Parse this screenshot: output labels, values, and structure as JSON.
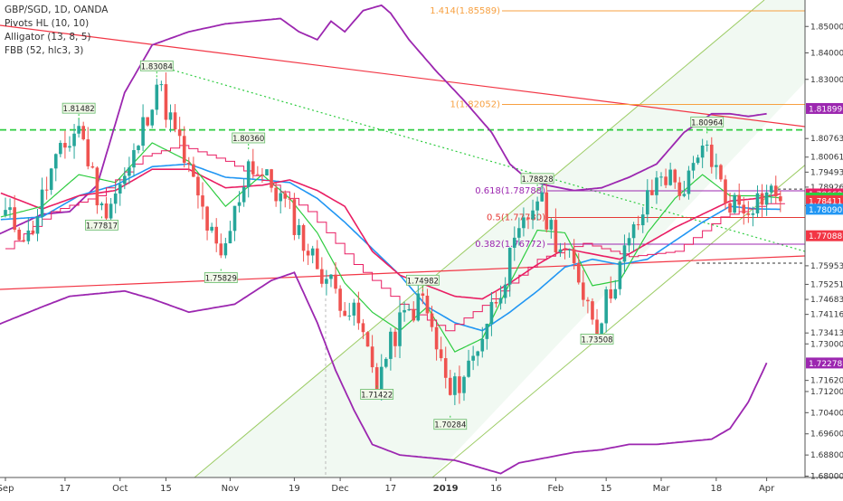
{
  "chart_data": {
    "type": "candlestick",
    "symbol": "GBP/SGD",
    "interval": "1D",
    "source": "OANDA",
    "indicators": [
      "Pivots HL (10, 10)",
      "Alligator (13, 8, 5)",
      "FBB (52, hlc3, 3)"
    ],
    "ylim": [
      1.6795,
      1.86
    ],
    "y_ticks": [
      {
        "v": 1.85,
        "label": "1.85000"
      },
      {
        "v": 1.84,
        "label": "1.84000"
      },
      {
        "v": 1.83,
        "label": "1.83000"
      },
      {
        "v": 1.80763,
        "label": "1.80763"
      },
      {
        "v": 1.80061,
        "label": "1.80061"
      },
      {
        "v": 1.79493,
        "label": "1.79493"
      },
      {
        "v": 1.78926,
        "label": "1.78926"
      },
      {
        "v": 1.78223,
        "label": "1.78223"
      },
      {
        "v": 1.75953,
        "label": "1.75953"
      },
      {
        "v": 1.75251,
        "label": "1.75251"
      },
      {
        "v": 1.74683,
        "label": "1.74683"
      },
      {
        "v": 1.74116,
        "label": "1.74116"
      },
      {
        "v": 1.73413,
        "label": "1.73413"
      },
      {
        "v": 1.73,
        "label": "1.73000"
      },
      {
        "v": 1.7162,
        "label": "1.71620"
      },
      {
        "v": 1.712,
        "label": "1.71200"
      },
      {
        "v": 1.704,
        "label": "1.70400"
      },
      {
        "v": 1.696,
        "label": "1.69600"
      },
      {
        "v": 1.688,
        "label": "1.68800"
      },
      {
        "v": 1.68,
        "label": "1.68000"
      }
    ],
    "price_tags": [
      {
        "v": 1.81899,
        "label": "1.81899",
        "color": "#9c27b0"
      },
      {
        "v": 1.78668,
        "label": "1.78668",
        "color": "#e91e63"
      },
      {
        "v": 1.78516,
        "label": "1.78516",
        "color": "#2ecc40"
      },
      {
        "v": 1.78411,
        "label": "1.78411",
        "color": "#f23645"
      },
      {
        "v": 1.7809,
        "label": "1.78090",
        "color": "#2196f3"
      },
      {
        "v": 1.77088,
        "label": "1.77088",
        "color": "#f23645"
      },
      {
        "v": 1.72278,
        "label": "1.72278",
        "color": "#9c27b0"
      }
    ],
    "x_labels": [
      {
        "d": 0,
        "label": "Sep"
      },
      {
        "d": 13,
        "label": "17"
      },
      {
        "d": 25,
        "label": "Oct"
      },
      {
        "d": 35,
        "label": "15"
      },
      {
        "d": 49,
        "label": "Nov"
      },
      {
        "d": 63,
        "label": "19"
      },
      {
        "d": 73,
        "label": "Dec"
      },
      {
        "d": 84,
        "label": "17"
      },
      {
        "d": 96,
        "label": "2019"
      },
      {
        "d": 107,
        "label": "16"
      },
      {
        "d": 120,
        "label": "Feb"
      },
      {
        "d": 131,
        "label": "15"
      },
      {
        "d": 143,
        "label": "Mar"
      },
      {
        "d": 155,
        "label": "18"
      },
      {
        "d": 166,
        "label": "Apr"
      }
    ],
    "pivots": [
      {
        "d": 16,
        "v": 1.81482,
        "label": "1.81482",
        "pos": "high"
      },
      {
        "d": 21,
        "v": 1.77817,
        "label": "1.77817",
        "pos": "low"
      },
      {
        "d": 33,
        "v": 1.83084,
        "label": "1.83084",
        "pos": "high"
      },
      {
        "d": 47,
        "v": 1.75829,
        "label": "1.75829",
        "pos": "low"
      },
      {
        "d": 53,
        "v": 1.8036,
        "label": "1.80360",
        "pos": "high"
      },
      {
        "d": 81,
        "v": 1.71422,
        "label": "1.71422",
        "pos": "low"
      },
      {
        "d": 91,
        "v": 1.74982,
        "label": "1.74982",
        "pos": "high"
      },
      {
        "d": 97,
        "v": 1.70284,
        "label": "1.70284",
        "pos": "low"
      },
      {
        "d": 116,
        "v": 1.78828,
        "label": "1.78828",
        "pos": "high"
      },
      {
        "d": 129,
        "v": 1.73508,
        "label": "1.73508",
        "pos": "low"
      },
      {
        "d": 153,
        "v": 1.80964,
        "label": "1.80964",
        "pos": "high"
      }
    ],
    "fib_levels": [
      {
        "v": 1.85589,
        "label": "1.414(1.85589)",
        "color": "#f7a040"
      },
      {
        "v": 1.82052,
        "label": "1(1.82052)",
        "color": "#f7a040"
      },
      {
        "v": 1.78788,
        "label": "0.618(1.78788)",
        "color": "#9c27b0"
      },
      {
        "v": 1.7778,
        "label": "0.5(1.77780)",
        "color": "#e53935"
      },
      {
        "v": 1.76772,
        "label": "0.382(1.76772)",
        "color": "#9c27b0"
      }
    ],
    "colors": {
      "up": "#26a69a",
      "down": "#ef5350",
      "bb": "#9c27b0",
      "jaw": "#2196f3",
      "teeth": "#e91e63",
      "lips": "#2ecc40",
      "hline": "#2ecc40",
      "trend": "#f23645",
      "channel": "#9ccc65",
      "pivot_hl": "#e91e63"
    }
  }
}
